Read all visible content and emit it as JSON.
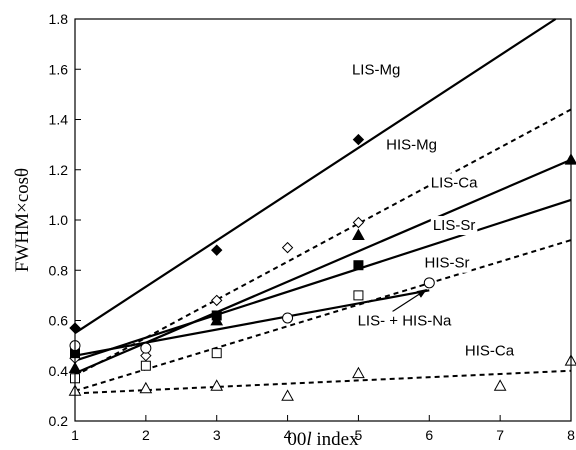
{
  "chart_data": {
    "type": "scatter",
    "xlabel_prefix": "00",
    "xlabel_var": "l",
    "xlabel_suffix": " index",
    "ylabel": "FWHM×cosθ",
    "xlim": [
      1,
      8
    ],
    "ylim": [
      0.2,
      1.8
    ],
    "xticks": [
      1,
      2,
      3,
      4,
      5,
      6,
      7,
      8
    ],
    "yticks": [
      0.2,
      0.4,
      0.6,
      0.8,
      1.0,
      1.2,
      1.4,
      1.6,
      1.8
    ],
    "ytick_labels": [
      "0.2",
      "0.4",
      "0.6",
      "0.8",
      "1.0",
      "1.2",
      "1.4",
      "1.6",
      "1.8"
    ],
    "grid": false,
    "series": [
      {
        "name": "LIS-Mg",
        "marker": "diamond-filled",
        "dash": false,
        "points": [
          [
            1,
            0.57
          ],
          [
            3,
            0.88
          ],
          [
            5,
            1.32
          ]
        ],
        "fit": [
          [
            1,
            0.55
          ],
          [
            8,
            1.84
          ]
        ]
      },
      {
        "name": "HIS-Mg",
        "marker": "diamond-open",
        "dash": true,
        "points": [
          [
            1,
            0.45
          ],
          [
            2,
            0.46
          ],
          [
            3,
            0.68
          ],
          [
            4,
            0.89
          ],
          [
            5,
            0.99
          ]
        ],
        "fit": [
          [
            1,
            0.38
          ],
          [
            8,
            1.44
          ]
        ]
      },
      {
        "name": "LIS-Ca",
        "marker": "triangle-filled",
        "dash": false,
        "points": [
          [
            1,
            0.41
          ],
          [
            3,
            0.6
          ],
          [
            5,
            0.94
          ],
          [
            8,
            1.24
          ]
        ],
        "fit": [
          [
            1,
            0.39
          ],
          [
            8,
            1.24
          ]
        ]
      },
      {
        "name": "LIS-Sr",
        "marker": "square-filled",
        "dash": false,
        "points": [
          [
            1,
            0.47
          ],
          [
            3,
            0.62
          ],
          [
            5,
            0.82
          ]
        ],
        "fit": [
          [
            1,
            0.44
          ],
          [
            8,
            1.08
          ]
        ]
      },
      {
        "name": "HIS-Sr",
        "marker": "square-open",
        "dash": true,
        "points": [
          [
            1,
            0.37
          ],
          [
            2,
            0.42
          ],
          [
            3,
            0.47
          ],
          [
            5,
            0.7
          ]
        ],
        "fit": [
          [
            1,
            0.32
          ],
          [
            8,
            0.92
          ]
        ]
      },
      {
        "name": "LIS- + HIS-Na",
        "marker": "circle-open",
        "dash": false,
        "points": [
          [
            1,
            0.5
          ],
          [
            2,
            0.49
          ],
          [
            4,
            0.61
          ],
          [
            6,
            0.75
          ]
        ],
        "fit": [
          [
            1,
            0.46
          ],
          [
            6,
            0.72
          ]
        ]
      },
      {
        "name": "HIS-Ca",
        "marker": "triangle-open",
        "dash": true,
        "points": [
          [
            1,
            0.32
          ],
          [
            2,
            0.33
          ],
          [
            3,
            0.34
          ],
          [
            4,
            0.3
          ],
          [
            5,
            0.39
          ],
          [
            7,
            0.34
          ],
          [
            8,
            0.44
          ]
        ],
        "fit": [
          [
            1,
            0.31
          ],
          [
            8,
            0.4
          ]
        ]
      }
    ],
    "labels": [
      {
        "series": "LIS-Mg",
        "text": "LIS-Mg",
        "x": 5.25,
        "y": 1.6
      },
      {
        "series": "HIS-Mg",
        "text": "HIS-Mg",
        "x": 5.75,
        "y": 1.3
      },
      {
        "series": "LIS-Ca",
        "text": "LIS-Ca",
        "x": 6.35,
        "y": 1.15
      },
      {
        "series": "LIS-Sr",
        "text": "LIS-Sr",
        "x": 6.35,
        "y": 0.98
      },
      {
        "series": "HIS-Sr",
        "text": "HIS-Sr",
        "x": 6.25,
        "y": 0.83
      },
      {
        "series": "LIS- + HIS-Na",
        "text": "LIS- + HIS-Na",
        "x": 5.65,
        "y": 0.6,
        "arrow_to": [
          6.0,
          0.735
        ]
      },
      {
        "series": "HIS-Ca",
        "text": "HIS-Ca",
        "x": 6.85,
        "y": 0.48
      }
    ]
  }
}
